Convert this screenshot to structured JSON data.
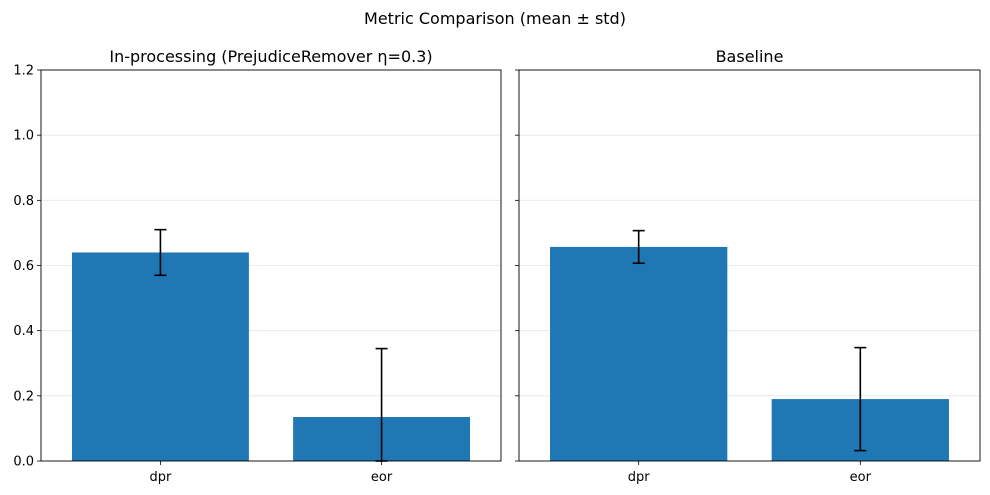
{
  "figure": {
    "suptitle": "Metric Comparison (mean ± std)"
  },
  "chart_data": [
    {
      "type": "bar",
      "title": "In-processing (PrejudiceRemover η=0.3)",
      "categories": [
        "dpr",
        "eor"
      ],
      "values": [
        0.64,
        0.135
      ],
      "errors": [
        0.07,
        0.21
      ],
      "color": "#1f77b4",
      "xlabel": "",
      "ylabel": "",
      "ylim": [
        0,
        1.2
      ],
      "yticks": [
        "0.0",
        "0.2",
        "0.4",
        "0.6",
        "0.8",
        "1.0",
        "1.2"
      ],
      "grid": "y"
    },
    {
      "type": "bar",
      "title": "Baseline",
      "categories": [
        "dpr",
        "eor"
      ],
      "values": [
        0.657,
        0.19
      ],
      "errors": [
        0.05,
        0.158
      ],
      "color": "#1f77b4",
      "xlabel": "",
      "ylabel": "",
      "ylim": [
        0,
        1.2
      ],
      "yticks": [
        "0.0",
        "0.2",
        "0.4",
        "0.6",
        "0.8",
        "1.0",
        "1.2"
      ],
      "grid": "y",
      "sharey": true
    }
  ]
}
